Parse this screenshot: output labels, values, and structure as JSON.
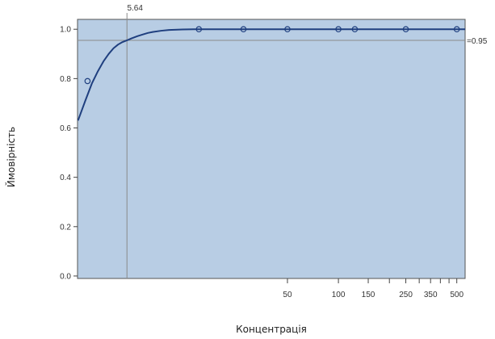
{
  "chart_data": {
    "type": "line",
    "xlabel": "Концентрація",
    "ylabel": "Ймовірність",
    "x_scale": "log",
    "xlim": [
      2.88,
      560
    ],
    "ylim": [
      -0.01,
      1.04
    ],
    "x_ticks": [
      {
        "value": 50,
        "label": "50"
      },
      {
        "value": 100,
        "label": "100"
      },
      {
        "value": 150,
        "label": "150"
      },
      {
        "value": 250,
        "label": "250"
      },
      {
        "value": 350,
        "label": "350"
      },
      {
        "value": 500,
        "label": "500"
      }
    ],
    "x_minor_ticks": [
      200,
      300,
      400,
      450
    ],
    "y_ticks": [
      {
        "value": 0.0,
        "label": "0.0"
      },
      {
        "value": 0.2,
        "label": "0.2"
      },
      {
        "value": 0.4,
        "label": "0.4"
      },
      {
        "value": 0.6,
        "label": "0.6"
      },
      {
        "value": 0.8,
        "label": "0.8"
      },
      {
        "value": 1.0,
        "label": "1.0"
      }
    ],
    "curve": {
      "x": [
        2.9,
        3.2,
        3.5,
        3.8,
        4.1,
        4.4,
        4.7,
        5.0,
        5.3,
        5.64,
        6.0,
        6.5,
        7.0,
        7.5,
        8.0,
        9.0,
        10.0,
        12.0,
        14.0,
        17.0,
        20.0,
        30.0,
        50.0,
        100.0,
        200.0,
        350.0,
        500.0,
        560.0
      ],
      "y": [
        0.63,
        0.71,
        0.78,
        0.83,
        0.87,
        0.9,
        0.923,
        0.938,
        0.948,
        0.955,
        0.963,
        0.972,
        0.979,
        0.985,
        0.989,
        0.994,
        0.997,
        0.999,
        1.0,
        1.0,
        1.0,
        1.0,
        1.0,
        1.0,
        1.0,
        1.0,
        1.0,
        1.0
      ],
      "color": "#1f3f7f"
    },
    "points": {
      "x": [
        3.3,
        15.0,
        27.5,
        50.0,
        100.0,
        125.0,
        250.0,
        500.0
      ],
      "y": [
        0.79,
        1.0,
        1.0,
        1.0,
        1.0,
        1.0,
        1.0,
        1.0
      ]
    },
    "reference_lines": {
      "vertical": {
        "value": 5.64,
        "label": "5.64"
      },
      "horizontal": {
        "value": 0.955,
        "label": "=0.95"
      }
    },
    "colors": {
      "fill": "#b8cde4",
      "curve": "#1f3f7f",
      "points": "#1f3f7f",
      "reference": "#8a8a8a"
    },
    "grid": false,
    "legend": "none"
  }
}
